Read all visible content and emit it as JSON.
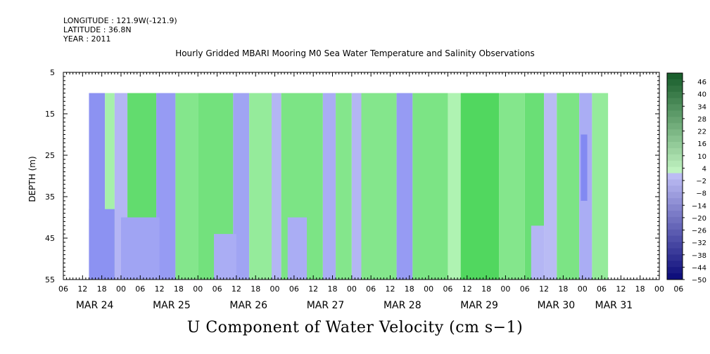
{
  "header": {
    "longitude": "LONGITUDE : 121.9W(-121.9)",
    "latitude": "LATITUDE : 36.8N",
    "year": "YEAR : 2011"
  },
  "chart_data": {
    "type": "heatmap",
    "title": "Hourly Gridded MBARI Mooring M0 Sea Water Temperature and Salinity Observations",
    "bottom_title": "U Component of Water Velocity (cm s−1)",
    "ylabel": "DEPTH (m)",
    "ylim": [
      5,
      55
    ],
    "y_inverted": true,
    "y_ticks": [
      "5",
      "15",
      "25",
      "35",
      "45",
      "55"
    ],
    "x_hour_ticks": [
      "06",
      "12",
      "18",
      "00",
      "06",
      "12",
      "18",
      "00",
      "06",
      "12",
      "18",
      "00",
      "06",
      "12",
      "18",
      "00",
      "06",
      "12",
      "18",
      "00",
      "06",
      "12",
      "18",
      "00",
      "06",
      "12",
      "18",
      "00",
      "06",
      "12",
      "18",
      "00",
      "06"
    ],
    "x_date_labels": [
      "MAR 24",
      "MAR 25",
      "MAR 26",
      "MAR 27",
      "MAR 28",
      "MAR 29",
      "MAR 30",
      "MAR 31"
    ],
    "data_depth_range": [
      10,
      55
    ],
    "colorbar": {
      "labels": [
        "46",
        "40",
        "34",
        "28",
        "22",
        "16",
        "10",
        "4",
        "−2",
        "−8",
        "−14",
        "−20",
        "−26",
        "−32",
        "−38",
        "−44",
        "−50"
      ],
      "range": [
        -50,
        49
      ],
      "positive_color": "#22cc44",
      "negative_color": "#8888ee"
    },
    "bands": [
      {
        "start": "MAR 24 14:00",
        "end": "MAR 24 19:00",
        "value": -12
      },
      {
        "start": "MAR 24 19:00",
        "end": "MAR 24 22:00",
        "value": 4
      },
      {
        "start": "MAR 24 22:00",
        "end": "MAR 25 02:00",
        "value": -4
      },
      {
        "start": "MAR 25 02:00",
        "end": "MAR 25 11:00",
        "value": 12
      },
      {
        "start": "MAR 25 11:00",
        "end": "MAR 25 17:00",
        "value": -10
      },
      {
        "start": "MAR 25 17:00",
        "end": "MAR 26 00:00",
        "value": 8
      },
      {
        "start": "MAR 26 00:00",
        "end": "MAR 26 11:00",
        "value": 10
      },
      {
        "start": "MAR 26 11:00",
        "end": "MAR 26 16:00",
        "value": -8
      },
      {
        "start": "MAR 26 16:00",
        "end": "MAR 26 23:00",
        "value": 6
      },
      {
        "start": "MAR 26 23:00",
        "end": "MAR 27 02:00",
        "value": -4
      },
      {
        "start": "MAR 27 02:00",
        "end": "MAR 27 15:00",
        "value": 9
      },
      {
        "start": "MAR 27 15:00",
        "end": "MAR 27 19:00",
        "value": -6
      },
      {
        "start": "MAR 27 19:00",
        "end": "MAR 28 00:00",
        "value": 8
      },
      {
        "start": "MAR 28 00:00",
        "end": "MAR 28 03:00",
        "value": -4
      },
      {
        "start": "MAR 28 03:00",
        "end": "MAR 28 14:00",
        "value": 8
      },
      {
        "start": "MAR 28 14:00",
        "end": "MAR 28 19:00",
        "value": -10
      },
      {
        "start": "MAR 28 19:00",
        "end": "MAR 29 06:00",
        "value": 9
      },
      {
        "start": "MAR 29 06:00",
        "end": "MAR 29 10:00",
        "value": 3
      },
      {
        "start": "MAR 29 10:00",
        "end": "MAR 29 22:00",
        "value": 14
      },
      {
        "start": "MAR 29 22:00",
        "end": "MAR 30 06:00",
        "value": 8
      },
      {
        "start": "MAR 30 06:00",
        "end": "MAR 30 12:00",
        "value": 11
      },
      {
        "start": "MAR 30 12:00",
        "end": "MAR 30 16:00",
        "value": -3
      },
      {
        "start": "MAR 30 16:00",
        "end": "MAR 30 23:00",
        "value": 9
      },
      {
        "start": "MAR 30 23:00",
        "end": "MAR 31 03:00",
        "value": -6
      },
      {
        "start": "MAR 31 03:00",
        "end": "MAR 31 08:00",
        "value": 6
      }
    ],
    "patches": [
      {
        "start": "MAR 24 14:00",
        "end": "MAR 24 22:00",
        "depth": [
          38,
          55
        ],
        "value": -12
      },
      {
        "start": "MAR 25 00:00",
        "end": "MAR 25 12:00",
        "depth": [
          40,
          55
        ],
        "value": -8
      },
      {
        "start": "MAR 26 05:00",
        "end": "MAR 26 12:00",
        "depth": [
          44,
          55
        ],
        "value": -6
      },
      {
        "start": "MAR 27 04:00",
        "end": "MAR 27 10:00",
        "depth": [
          40,
          55
        ],
        "value": -6
      },
      {
        "start": "MAR 30 08:00",
        "end": "MAR 30 12:00",
        "depth": [
          42,
          55
        ],
        "value": -4
      },
      {
        "start": "MAR 30 23:30",
        "end": "MAR 31 01:30",
        "depth": [
          20,
          36
        ],
        "value": -14
      }
    ]
  }
}
